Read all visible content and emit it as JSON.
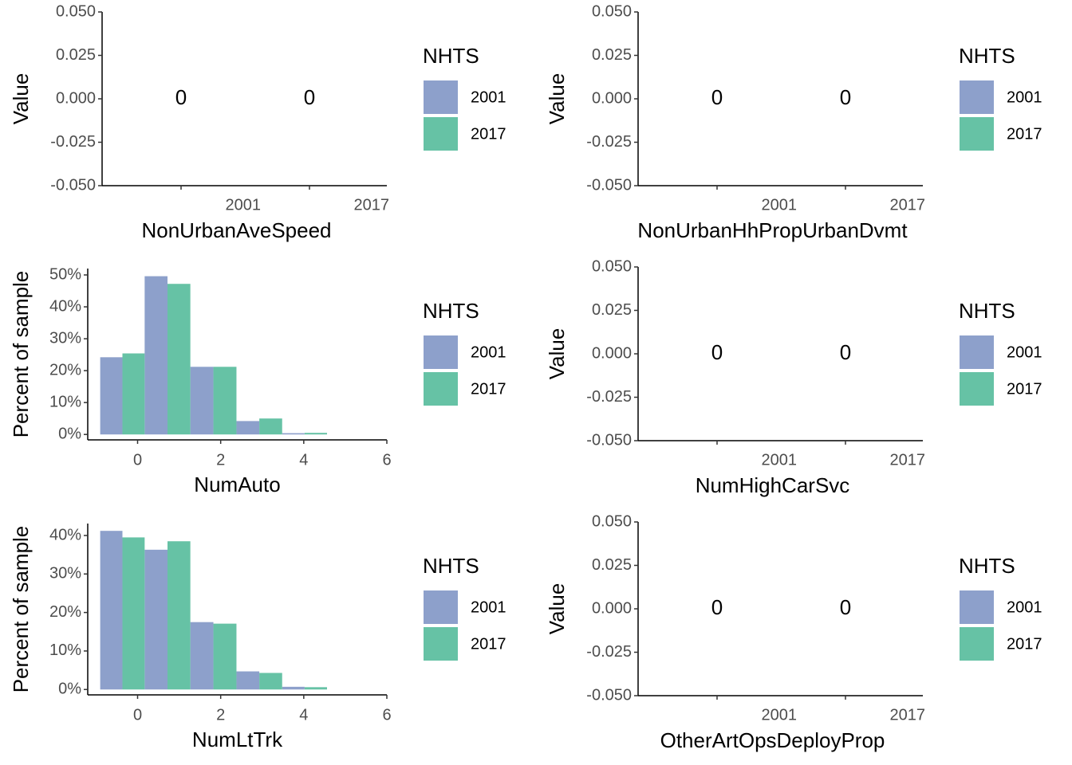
{
  "chart_data": [
    {
      "type": "label",
      "x_label": "NonUrbanAveSpeed",
      "y_label": "Value",
      "legend_title": "NHTS",
      "categories": [
        "2001",
        "2017"
      ],
      "values": [
        0,
        0
      ],
      "legend": [
        {
          "name": "2001",
          "color": "#8da0cb"
        },
        {
          "name": "2017",
          "color": "#66c2a5"
        }
      ],
      "ylim": [
        -0.05,
        0.05
      ],
      "yticks": [
        {
          "value": -0.05,
          "label": "-0.050"
        },
        {
          "value": -0.025,
          "label": "-0.025"
        },
        {
          "value": 0,
          "label": "0.000"
        },
        {
          "value": 0.025,
          "label": "0.025"
        },
        {
          "value": 0.05,
          "label": "0.050"
        }
      ]
    },
    {
      "type": "label",
      "x_label": "NonUrbanHhPropUrbanDvmt",
      "y_label": "Value",
      "legend_title": "NHTS",
      "categories": [
        "2001",
        "2017"
      ],
      "values": [
        0,
        0
      ],
      "legend": [
        {
          "name": "2001",
          "color": "#8da0cb"
        },
        {
          "name": "2017",
          "color": "#66c2a5"
        }
      ],
      "ylim": [
        -0.05,
        0.05
      ],
      "yticks": [
        {
          "value": -0.05,
          "label": "-0.050"
        },
        {
          "value": -0.025,
          "label": "-0.025"
        },
        {
          "value": 0,
          "label": "0.000"
        },
        {
          "value": 0.025,
          "label": "0.025"
        },
        {
          "value": 0.05,
          "label": "0.050"
        }
      ]
    },
    {
      "type": "histogram",
      "x_label": "NumAuto",
      "y_label": "Percent of sample",
      "legend_title": "NHTS",
      "bins": [
        -0.9,
        0.17,
        1.27,
        2.38,
        3.48,
        4.56
      ],
      "series": [
        {
          "name": "2001",
          "color": "#8da0cb",
          "values": [
            24.2,
            49.6,
            21.2,
            4.2,
            0.4
          ]
        },
        {
          "name": "2017",
          "color": "#66c2a5",
          "values": [
            25.4,
            47.2,
            21.2,
            5,
            0.5
          ]
        }
      ],
      "xlim": [
        -1.2,
        6
      ],
      "xticks": [
        0,
        2,
        4,
        6
      ],
      "ylim": [
        -1.7,
        52
      ],
      "yticks": [
        {
          "value": 0,
          "label": "0%"
        },
        {
          "value": 10,
          "label": "10%"
        },
        {
          "value": 20,
          "label": "20%"
        },
        {
          "value": 30,
          "label": "30%"
        },
        {
          "value": 40,
          "label": "40%"
        },
        {
          "value": 50,
          "label": "50%"
        }
      ]
    },
    {
      "type": "label",
      "x_label": "NumHighCarSvc",
      "y_label": "Value",
      "legend_title": "NHTS",
      "categories": [
        "2001",
        "2017"
      ],
      "values": [
        0,
        0
      ],
      "legend": [
        {
          "name": "2001",
          "color": "#8da0cb"
        },
        {
          "name": "2017",
          "color": "#66c2a5"
        }
      ],
      "ylim": [
        -0.05,
        0.05
      ],
      "yticks": [
        {
          "value": -0.05,
          "label": "-0.050"
        },
        {
          "value": -0.025,
          "label": "-0.025"
        },
        {
          "value": 0,
          "label": "0.000"
        },
        {
          "value": 0.025,
          "label": "0.025"
        },
        {
          "value": 0.05,
          "label": "0.050"
        }
      ]
    },
    {
      "type": "histogram",
      "x_label": "NumLtTrk",
      "y_label": "Percent of sample",
      "legend_title": "NHTS",
      "bins": [
        -0.9,
        0.17,
        1.27,
        2.38,
        3.48,
        4.56
      ],
      "series": [
        {
          "name": "2001",
          "color": "#8da0cb",
          "values": [
            41.2,
            36.3,
            17.5,
            4.7,
            0.7
          ]
        },
        {
          "name": "2017",
          "color": "#66c2a5",
          "values": [
            39.5,
            38.5,
            17.1,
            4.3,
            0.6
          ]
        }
      ],
      "xlim": [
        -1.2,
        6
      ],
      "xticks": [
        0,
        2,
        4,
        6
      ],
      "ylim": [
        -1.4,
        43.1
      ],
      "yticks": [
        {
          "value": 0,
          "label": "0%"
        },
        {
          "value": 10,
          "label": "10%"
        },
        {
          "value": 20,
          "label": "20%"
        },
        {
          "value": 30,
          "label": "30%"
        },
        {
          "value": 40,
          "label": "40%"
        }
      ]
    },
    {
      "type": "label",
      "x_label": "OtherArtOpsDeployProp",
      "y_label": "Value",
      "legend_title": "NHTS",
      "categories": [
        "2001",
        "2017"
      ],
      "values": [
        0,
        0
      ],
      "legend": [
        {
          "name": "2001",
          "color": "#8da0cb"
        },
        {
          "name": "2017",
          "color": "#66c2a5"
        }
      ],
      "ylim": [
        -0.05,
        0.05
      ],
      "yticks": [
        {
          "value": -0.05,
          "label": "-0.050"
        },
        {
          "value": -0.025,
          "label": "-0.025"
        },
        {
          "value": 0,
          "label": "0.000"
        },
        {
          "value": 0.025,
          "label": "0.025"
        },
        {
          "value": 0.05,
          "label": "0.050"
        }
      ]
    }
  ]
}
